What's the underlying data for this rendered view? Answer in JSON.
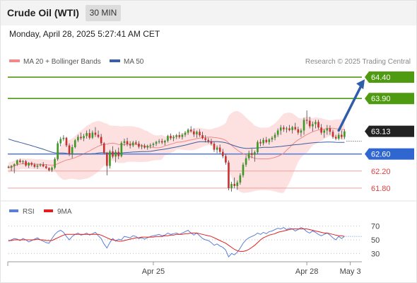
{
  "header": {
    "instrument": "Crude Oil (WTI)",
    "timeframe": "30 MIN"
  },
  "timestamp": "Monday, April 28, 2025 5:27:41 AM CET",
  "chart_data": [
    {
      "type": "candlestick",
      "legend": [
        {
          "label": "MA 20 + Bollinger Bands",
          "color": "#f08a8a"
        },
        {
          "label": "MA 50",
          "color": "#3b5fa0"
        }
      ],
      "attribution": "Research © 2025 Trading Central",
      "ylim": [
        61.6,
        64.55
      ],
      "xlim": [
        0,
        122
      ],
      "x_ticks": [
        {
          "label": "Apr 25",
          "x": 50
        },
        {
          "label": "Apr 28",
          "x": 103
        },
        {
          "label": "May 3",
          "x": 118
        }
      ],
      "last_price": {
        "label": "63.13",
        "value": 63.13
      },
      "levels": [
        {
          "label": "64.40",
          "value": 64.4,
          "kind": "target"
        },
        {
          "label": "63.90",
          "value": 63.9,
          "kind": "target"
        },
        {
          "label": "62.60",
          "value": 62.6,
          "kind": "pivot"
        },
        {
          "label": "62.20",
          "value": 62.2,
          "kind": "support"
        },
        {
          "label": "61.80",
          "value": 61.8,
          "kind": "support"
        }
      ],
      "projection": {
        "from": {
          "x": 114,
          "value": 63.15
        },
        "to": {
          "x": 123,
          "value": 64.35
        }
      },
      "candles": [
        [
          62.3,
          62.33,
          62.26,
          62.28
        ],
        [
          62.28,
          62.34,
          62.2,
          62.32
        ],
        [
          62.32,
          62.38,
          62.15,
          62.36
        ],
        [
          62.36,
          62.47,
          62.32,
          62.45
        ],
        [
          62.45,
          62.49,
          62.39,
          62.41
        ],
        [
          62.41,
          62.46,
          62.36,
          62.43
        ],
        [
          62.43,
          62.46,
          62.3,
          62.33
        ],
        [
          62.33,
          62.41,
          62.27,
          62.39
        ],
        [
          62.39,
          62.42,
          62.31,
          62.35
        ],
        [
          62.35,
          62.39,
          62.27,
          62.3
        ],
        [
          62.3,
          62.37,
          62.25,
          62.33
        ],
        [
          62.33,
          62.38,
          62.3,
          62.35
        ],
        [
          62.35,
          62.41,
          62.29,
          62.31
        ],
        [
          62.31,
          62.36,
          62.25,
          62.27
        ],
        [
          62.27,
          62.29,
          62.19,
          62.22
        ],
        [
          62.22,
          62.31,
          62.18,
          62.28
        ],
        [
          62.28,
          62.52,
          62.24,
          62.48
        ],
        [
          62.48,
          62.9,
          62.44,
          62.85
        ],
        [
          62.85,
          63.0,
          62.78,
          62.95
        ],
        [
          62.95,
          63.04,
          62.9,
          62.98
        ],
        [
          62.98,
          63.0,
          62.76,
          62.8
        ],
        [
          62.8,
          62.85,
          62.55,
          62.6
        ],
        [
          62.6,
          62.82,
          62.5,
          62.76
        ],
        [
          62.76,
          62.95,
          62.73,
          62.92
        ],
        [
          62.92,
          63.05,
          62.88,
          63.0
        ],
        [
          63.0,
          63.1,
          62.93,
          62.97
        ],
        [
          62.97,
          63.07,
          62.9,
          63.02
        ],
        [
          63.02,
          63.15,
          62.96,
          63.09
        ],
        [
          63.09,
          63.18,
          62.94,
          62.98
        ],
        [
          62.98,
          63.15,
          62.95,
          63.1
        ],
        [
          63.1,
          63.23,
          63.0,
          63.05
        ],
        [
          63.05,
          63.15,
          62.97,
          63.0
        ],
        [
          63.0,
          63.07,
          62.8,
          62.85
        ],
        [
          62.85,
          62.88,
          62.6,
          62.62
        ],
        [
          62.62,
          62.65,
          62.1,
          62.32
        ],
        [
          62.32,
          62.7,
          62.26,
          62.66
        ],
        [
          62.66,
          62.78,
          62.5,
          62.54
        ],
        [
          62.54,
          62.7,
          62.4,
          62.65
        ],
        [
          62.65,
          62.75,
          62.48,
          62.55
        ],
        [
          62.55,
          62.9,
          62.52,
          62.86
        ],
        [
          62.86,
          62.96,
          62.79,
          62.9
        ],
        [
          62.9,
          62.98,
          62.78,
          62.83
        ],
        [
          62.83,
          62.9,
          62.73,
          62.8
        ],
        [
          62.8,
          62.91,
          62.76,
          62.87
        ],
        [
          62.87,
          62.92,
          62.81,
          62.84
        ],
        [
          62.84,
          62.9,
          62.73,
          62.77
        ],
        [
          62.77,
          62.83,
          62.71,
          62.79
        ],
        [
          62.79,
          62.84,
          62.72,
          62.75
        ],
        [
          62.75,
          62.82,
          62.7,
          62.79
        ],
        [
          62.79,
          62.85,
          62.73,
          62.81
        ],
        [
          62.81,
          62.87,
          62.76,
          62.84
        ],
        [
          62.84,
          62.91,
          62.79,
          62.88
        ],
        [
          62.88,
          62.95,
          62.84,
          62.9
        ],
        [
          62.9,
          62.96,
          62.83,
          62.87
        ],
        [
          62.87,
          62.93,
          62.8,
          62.91
        ],
        [
          62.91,
          63.05,
          62.87,
          63.02
        ],
        [
          63.02,
          63.08,
          62.93,
          62.97
        ],
        [
          62.97,
          63.04,
          62.9,
          63.0
        ],
        [
          63.0,
          63.07,
          62.95,
          63.04
        ],
        [
          63.04,
          63.12,
          62.96,
          63.0
        ],
        [
          63.0,
          63.09,
          62.94,
          63.05
        ],
        [
          63.05,
          63.14,
          63.0,
          63.1
        ],
        [
          63.1,
          63.2,
          63.05,
          63.17
        ],
        [
          63.17,
          63.25,
          63.1,
          63.13
        ],
        [
          63.13,
          63.2,
          63.0,
          63.06
        ],
        [
          63.06,
          63.15,
          62.98,
          63.12
        ],
        [
          63.12,
          63.18,
          63.0,
          63.04
        ],
        [
          63.04,
          63.12,
          62.94,
          62.97
        ],
        [
          62.97,
          63.04,
          62.87,
          62.93
        ],
        [
          62.93,
          62.98,
          62.85,
          62.9
        ],
        [
          62.9,
          62.96,
          62.8,
          62.84
        ],
        [
          62.84,
          62.88,
          62.65,
          62.7
        ],
        [
          62.7,
          62.8,
          62.62,
          62.75
        ],
        [
          62.75,
          62.82,
          62.6,
          62.65
        ],
        [
          62.65,
          62.72,
          62.5,
          62.55
        ],
        [
          62.55,
          62.6,
          62.35,
          62.4
        ],
        [
          62.4,
          62.45,
          61.75,
          61.8
        ],
        [
          61.8,
          61.95,
          61.72,
          61.9
        ],
        [
          61.9,
          62.05,
          61.8,
          61.85
        ],
        [
          61.85,
          61.98,
          61.76,
          61.93
        ],
        [
          61.93,
          62.15,
          61.88,
          62.1
        ],
        [
          62.1,
          62.4,
          62.05,
          62.35
        ],
        [
          62.35,
          62.55,
          62.3,
          62.5
        ],
        [
          62.5,
          62.68,
          62.45,
          62.62
        ],
        [
          62.62,
          62.72,
          62.5,
          62.58
        ],
        [
          62.58,
          62.68,
          62.42,
          62.64
        ],
        [
          62.64,
          62.92,
          62.6,
          62.88
        ],
        [
          62.88,
          62.95,
          62.78,
          62.85
        ],
        [
          62.85,
          62.98,
          62.8,
          62.93
        ],
        [
          62.93,
          63.0,
          62.85,
          62.88
        ],
        [
          62.88,
          62.97,
          62.82,
          62.94
        ],
        [
          62.94,
          63.02,
          62.88,
          62.98
        ],
        [
          62.98,
          63.1,
          62.92,
          63.05
        ],
        [
          63.05,
          63.2,
          63.0,
          63.15
        ],
        [
          63.15,
          63.28,
          63.05,
          63.22
        ],
        [
          63.22,
          63.27,
          63.12,
          63.18
        ],
        [
          63.18,
          63.24,
          63.1,
          63.2
        ],
        [
          63.2,
          63.28,
          63.13,
          63.16
        ],
        [
          63.16,
          63.26,
          63.08,
          63.23
        ],
        [
          63.23,
          63.33,
          63.15,
          63.18
        ],
        [
          63.18,
          63.24,
          63.05,
          63.1
        ],
        [
          63.1,
          63.2,
          63.0,
          63.15
        ],
        [
          63.15,
          63.45,
          63.05,
          63.4
        ],
        [
          63.4,
          63.62,
          63.3,
          63.38
        ],
        [
          63.38,
          63.47,
          63.2,
          63.25
        ],
        [
          63.25,
          63.36,
          63.13,
          63.3
        ],
        [
          63.3,
          63.4,
          63.2,
          63.35
        ],
        [
          63.35,
          63.4,
          63.18,
          63.22
        ],
        [
          63.22,
          63.3,
          63.05,
          63.1
        ],
        [
          63.1,
          63.18,
          62.98,
          63.15
        ],
        [
          63.15,
          63.28,
          63.05,
          63.2
        ],
        [
          63.2,
          63.27,
          63.05,
          63.12
        ],
        [
          63.12,
          63.17,
          62.96,
          63.0
        ],
        [
          63.0,
          63.05,
          62.92,
          62.96
        ],
        [
          62.96,
          63.1,
          62.92,
          63.05
        ],
        [
          63.05,
          63.15,
          62.95,
          63.0
        ],
        [
          63.0,
          63.18,
          62.95,
          63.13
        ]
      ]
    },
    {
      "type": "line",
      "name": "RSI",
      "legend": [
        {
          "label": "RSI",
          "color": "#5b7fd6"
        },
        {
          "label": "9MA",
          "color": "#e02020"
        }
      ],
      "ylim": [
        22,
        78
      ],
      "y_ticks": [
        {
          "label": "70",
          "value": 70
        },
        {
          "label": "50",
          "value": 50
        },
        {
          "label": "30",
          "value": 30
        }
      ],
      "rsi": [
        48,
        50,
        52,
        51,
        49,
        52,
        50,
        47,
        49,
        51,
        53,
        50,
        48,
        46,
        45,
        52,
        58,
        62,
        64,
        61,
        55,
        50,
        55,
        58,
        60,
        57,
        58,
        60,
        57,
        59,
        61,
        56,
        52,
        44,
        38,
        46,
        52,
        48,
        51,
        50,
        55,
        54,
        53,
        56,
        55,
        52,
        53,
        51,
        53,
        55,
        56,
        57,
        58,
        56,
        57,
        60,
        58,
        59,
        60,
        58,
        60,
        62,
        64,
        60,
        57,
        60,
        56,
        52,
        50,
        49,
        46,
        42,
        44,
        41,
        39,
        35,
        25,
        30,
        28,
        32,
        38,
        45,
        50,
        53,
        55,
        57,
        60,
        58,
        61,
        59,
        62,
        63,
        65,
        67,
        66,
        68,
        65,
        67,
        66,
        63,
        65,
        68,
        66,
        62,
        60,
        63,
        61,
        58,
        56,
        58,
        60,
        57,
        53,
        50,
        55,
        52,
        55
      ],
      "ma9": [
        49,
        49,
        50,
        50,
        50,
        50,
        50,
        50,
        50,
        50,
        51,
        50,
        50,
        49,
        49,
        49,
        51,
        53,
        55,
        57,
        58,
        58,
        58,
        58,
        58,
        58,
        58,
        58,
        58,
        58,
        58,
        58,
        57,
        55,
        53,
        51,
        50,
        49,
        48,
        48,
        49,
        50,
        51,
        52,
        53,
        53,
        54,
        54,
        54,
        54,
        54,
        55,
        55,
        55,
        56,
        56,
        57,
        57,
        58,
        58,
        58,
        59,
        59,
        60,
        60,
        60,
        59,
        58,
        57,
        56,
        55,
        53,
        51,
        49,
        47,
        45,
        42,
        39,
        36,
        34,
        33,
        33,
        34,
        36,
        39,
        42,
        46,
        50,
        53,
        55,
        57,
        58,
        59,
        61,
        62,
        63,
        64,
        65,
        66,
        66,
        66,
        66,
        66,
        66,
        65,
        64,
        63,
        62,
        61,
        60,
        60,
        59,
        58,
        57,
        56,
        56,
        55
      ]
    }
  ]
}
